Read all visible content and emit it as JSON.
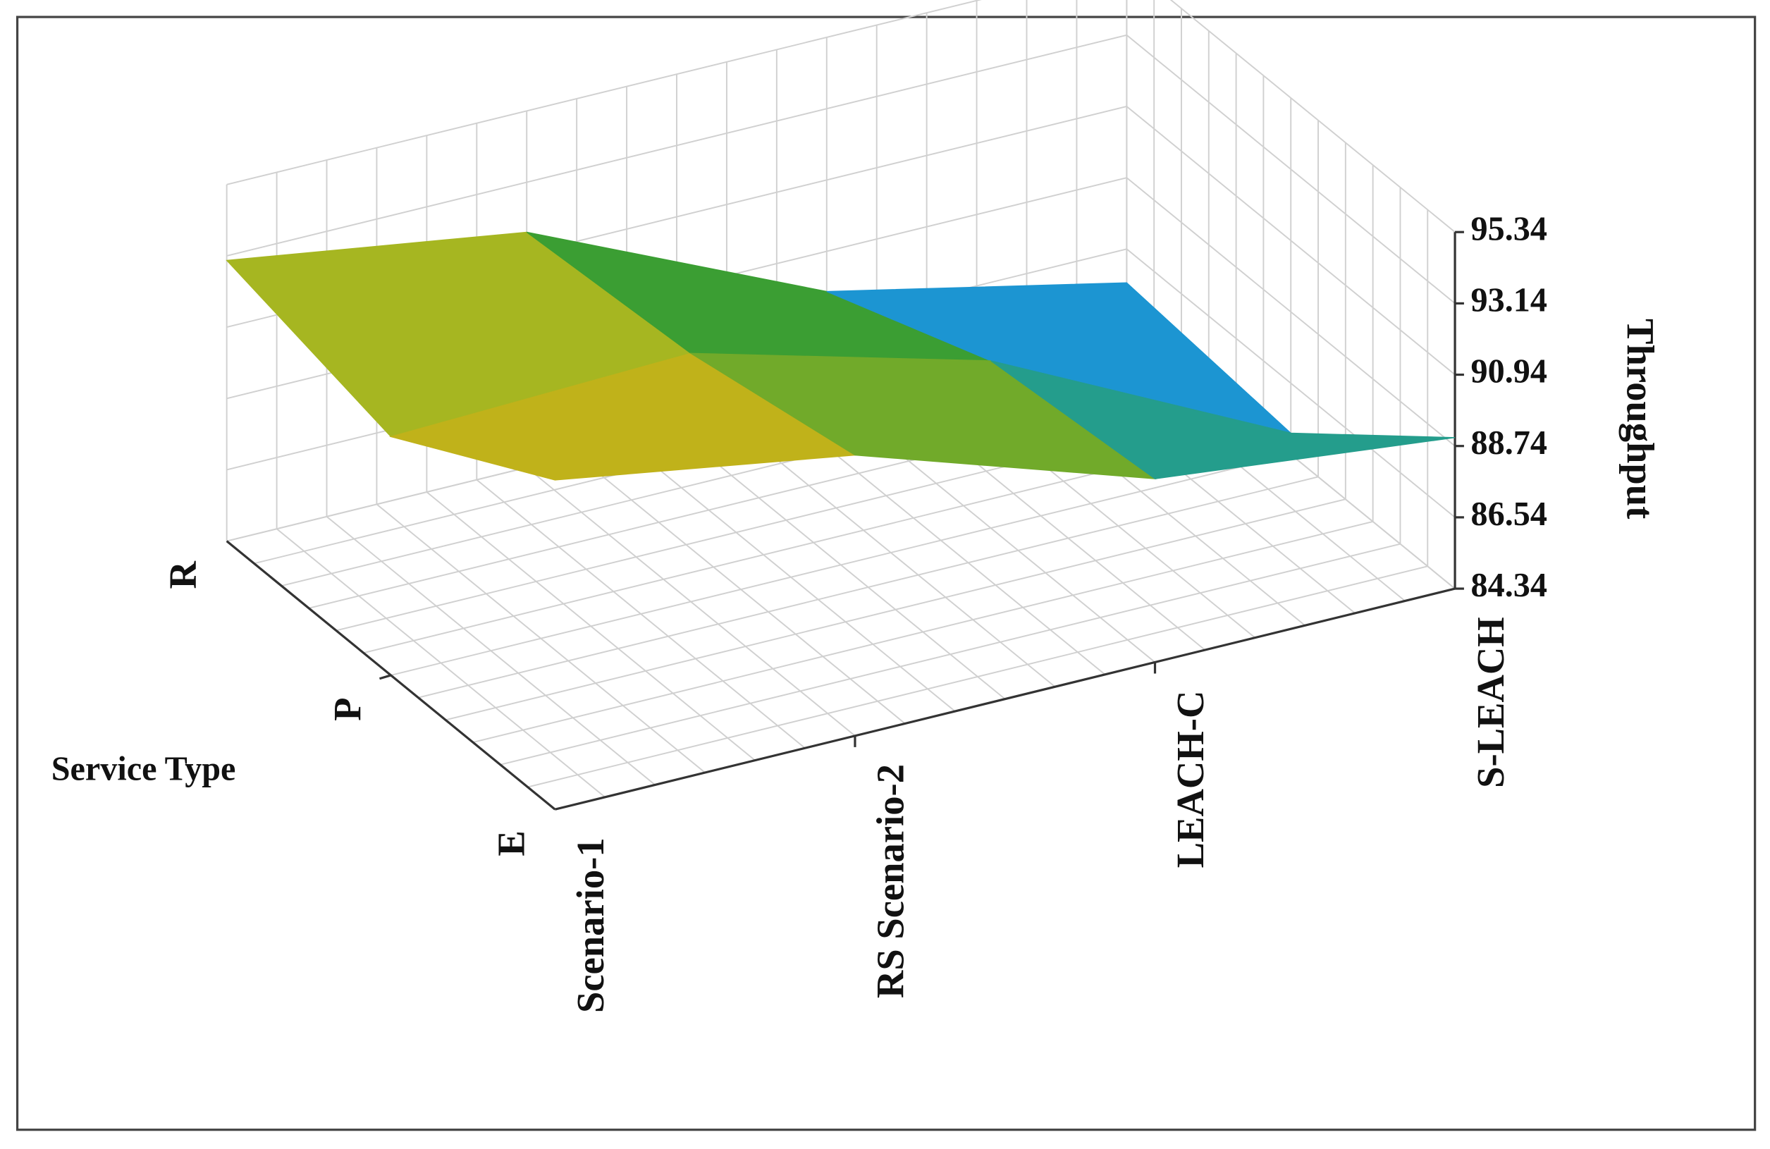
{
  "chart_data": {
    "type": "surface3d",
    "x_label": "Service Type",
    "z_label": "Throughput",
    "categories": [
      "Scenario-1",
      "RS Scenario-2",
      "LEACH-C",
      "S-LEACH"
    ],
    "series": [
      {
        "name": "R",
        "values": [
          93.0,
          91.6,
          87.5,
          85.5
        ]
      },
      {
        "name": "P",
        "values": [
          91.7,
          92.0,
          89.5,
          85.0
        ]
      },
      {
        "name": "E",
        "values": [
          94.5,
          93.0,
          90.0,
          89.0
        ]
      }
    ],
    "ylim": [
      84.34,
      95.34
    ],
    "yticks": [
      84.34,
      86.54,
      88.74,
      90.94,
      93.14,
      95.34
    ],
    "grid": true,
    "colormap": [
      "#0a1f8f",
      "#1e9fd8",
      "#2a9a36",
      "#c3bd1c",
      "#9a2a08"
    ]
  }
}
